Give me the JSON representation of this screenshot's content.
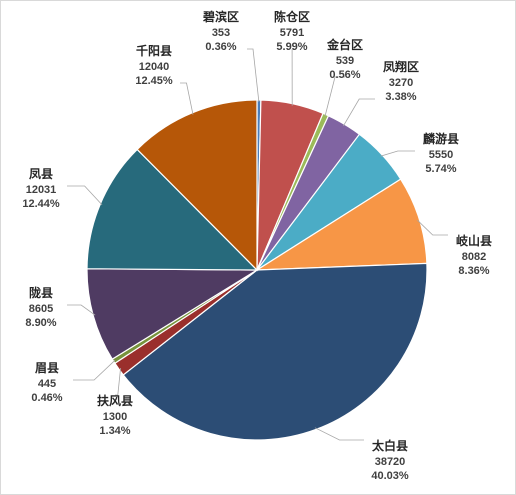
{
  "chart_data": {
    "type": "pie",
    "title": "",
    "start_label": "碧滨区",
    "slices": [
      {
        "name": "碧滨区",
        "value": 353,
        "percent": "0.36%",
        "color": "#4a7ebb"
      },
      {
        "name": "陈仓区",
        "value": 5791,
        "percent": "5.99%",
        "color": "#c0504d"
      },
      {
        "name": "金台区",
        "value": 539,
        "percent": "0.56%",
        "color": "#9bbb59"
      },
      {
        "name": "凤翔区",
        "value": 3270,
        "percent": "3.38%",
        "color": "#8064a2"
      },
      {
        "name": "麟游县",
        "value": 5550,
        "percent": "5.74%",
        "color": "#4bacc6"
      },
      {
        "name": "岐山县",
        "value": 8082,
        "percent": "8.36%",
        "color": "#f79646"
      },
      {
        "name": "太白县",
        "value": 38720,
        "percent": "40.03%",
        "color": "#2c4d75"
      },
      {
        "name": "扶风县",
        "value": 1300,
        "percent": "1.34%",
        "color": "#9a2f2c"
      },
      {
        "name": "眉县",
        "value": 445,
        "percent": "0.46%",
        "color": "#77933c"
      },
      {
        "name": "陇县",
        "value": 8605,
        "percent": "8.90%",
        "color": "#4f3b62"
      },
      {
        "name": "凤县",
        "value": 12031,
        "percent": "12.44%",
        "color": "#276a7c"
      },
      {
        "name": "千阳县",
        "value": 12040,
        "percent": "12.45%",
        "color": "#b65708"
      }
    ]
  }
}
